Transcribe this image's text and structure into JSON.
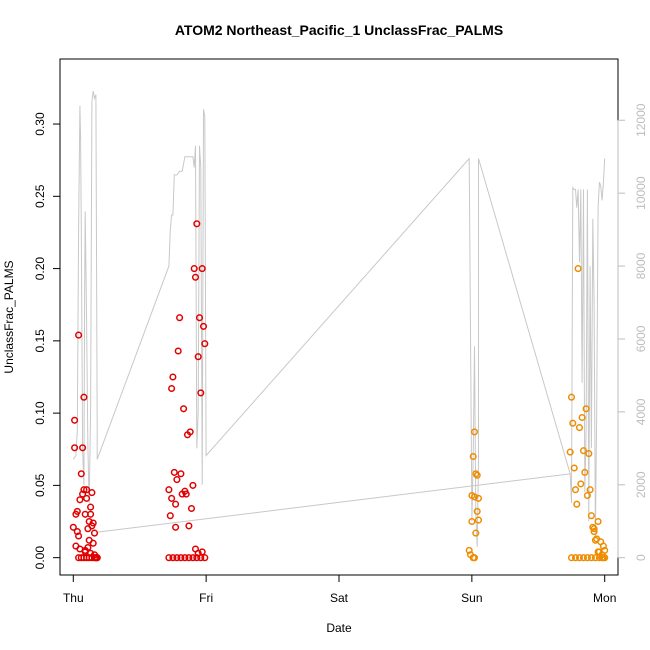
{
  "chart_data": {
    "type": "scatter",
    "title": "ATOM2 Northeast_Pacific_1 UnclassFrac_PALMS",
    "xlabel": "Date",
    "ylabel": "UnclassFrac_PALMS",
    "x_ticks": [
      "Thu",
      "Fri",
      "Sat",
      "Sun",
      "Mon"
    ],
    "xlim_days": [
      -0.1,
      4.1
    ],
    "ylim": [
      -0.012,
      0.345
    ],
    "y_ticks": [
      "0.00",
      "0.05",
      "0.10",
      "0.15",
      "0.20",
      "0.25",
      "0.30"
    ],
    "y2_ticks": [
      "0",
      "2000",
      "4000",
      "6000",
      "8000",
      "10000",
      "12000"
    ],
    "y2lim": [
      -475,
      13680
    ],
    "grid": false,
    "series": [
      {
        "color": "#e00000",
        "x": [
          0.0,
          0.01,
          0.01,
          0.02,
          0.02,
          0.03,
          0.03,
          0.04,
          0.04,
          0.05,
          0.06,
          0.07,
          0.07,
          0.08,
          0.08,
          0.09,
          0.09,
          0.1,
          0.1,
          0.11,
          0.11,
          0.12,
          0.12,
          0.13,
          0.13,
          0.14,
          0.14,
          0.15,
          0.15,
          0.16,
          0.16,
          0.17,
          0.17,
          0.18,
          0.18,
          0.04,
          0.06,
          0.08,
          0.1,
          0.12,
          0.14,
          0.16,
          0.05,
          0.09,
          0.13,
          0.17
        ],
        "y": [
          0.021,
          0.095,
          0.076,
          0.008,
          0.03,
          0.032,
          0.018,
          0.015,
          0.154,
          0.04,
          0.058,
          0.076,
          0.044,
          0.047,
          0.111,
          0.005,
          0.03,
          0.041,
          0.047,
          0.007,
          0.02,
          0.025,
          0.012,
          0.03,
          0.035,
          0.045,
          0.022,
          0.024,
          0.01,
          0.002,
          0.017,
          0.0,
          0.0,
          0.0,
          0.0,
          0.0,
          0.0,
          0.0,
          0.0,
          0.0,
          0.0,
          0.0,
          0.006,
          0.004,
          0.003,
          0.0
        ]
      },
      {
        "color": "#e00000",
        "x": [
          0.72,
          0.73,
          0.74,
          0.74,
          0.75,
          0.76,
          0.77,
          0.77,
          0.78,
          0.79,
          0.8,
          0.81,
          0.82,
          0.83,
          0.84,
          0.85,
          0.86,
          0.87,
          0.88,
          0.89,
          0.9,
          0.91,
          0.92,
          0.93,
          0.94,
          0.95,
          0.96,
          0.97,
          0.98,
          0.99,
          0.72,
          0.75,
          0.78,
          0.81,
          0.84,
          0.87,
          0.9,
          0.93,
          0.96,
          0.99,
          0.92,
          0.94,
          0.97
        ],
        "y": [
          0.047,
          0.029,
          0.117,
          0.041,
          0.125,
          0.059,
          0.021,
          0.037,
          0.054,
          0.143,
          0.166,
          0.058,
          0.044,
          0.103,
          0.046,
          0.044,
          0.085,
          0.022,
          0.087,
          0.034,
          0.05,
          0.2,
          0.194,
          0.231,
          0.139,
          0.166,
          0.114,
          0.2,
          0.16,
          0.148,
          0.0,
          0.0,
          0.0,
          0.0,
          0.0,
          0.0,
          0.0,
          0.0,
          0.0,
          0.0,
          0.006,
          0.003,
          0.004
        ]
      },
      {
        "color": "#ee8c00",
        "x": [
          2.98,
          2.99,
          3.0,
          3.0,
          3.01,
          3.02,
          3.02,
          3.03,
          3.04,
          3.04,
          3.05,
          3.05,
          3.03,
          3.01,
          3.02
        ],
        "y": [
          0.005,
          0.002,
          0.043,
          0.025,
          0.07,
          0.087,
          0.042,
          0.058,
          0.032,
          0.057,
          0.026,
          0.041,
          0.017,
          0.0,
          0.0
        ]
      },
      {
        "color": "#ee8c00",
        "x": [
          3.74,
          3.75,
          3.76,
          3.77,
          3.78,
          3.79,
          3.8,
          3.81,
          3.82,
          3.83,
          3.84,
          3.85,
          3.86,
          3.87,
          3.88,
          3.89,
          3.9,
          3.91,
          3.92,
          3.93,
          3.94,
          3.95,
          3.96,
          3.97,
          3.98,
          3.99,
          4.0,
          3.75,
          3.78,
          3.81,
          3.84,
          3.87,
          3.9,
          3.93,
          3.96,
          3.99,
          4.0,
          3.98,
          3.95,
          3.92
        ],
        "y": [
          0.073,
          0.111,
          0.093,
          0.062,
          0.047,
          0.037,
          0.2,
          0.09,
          0.051,
          0.097,
          0.074,
          0.059,
          0.103,
          0.043,
          0.072,
          0.047,
          0.029,
          0.021,
          0.018,
          0.012,
          0.013,
          0.025,
          0.004,
          0.011,
          0.002,
          0.008,
          0.005,
          0.0,
          0.0,
          0.0,
          0.0,
          0.0,
          0.0,
          0.0,
          0.0,
          0.0,
          0.0,
          0.0,
          0.004,
          0.02
        ]
      }
    ],
    "altitude_line": {
      "color": "#c8c8c8",
      "x": [
        0.0,
        0.02,
        0.03,
        0.04,
        0.05,
        0.055,
        0.06,
        0.07,
        0.08,
        0.085,
        0.09,
        0.1,
        0.11,
        0.12,
        0.13,
        0.14,
        0.15,
        0.16,
        0.17,
        0.18,
        0.18,
        0.72,
        0.73,
        0.74,
        0.75,
        0.76,
        0.78,
        0.8,
        0.82,
        0.84,
        0.86,
        0.88,
        0.9,
        0.91,
        0.92,
        0.93,
        0.935,
        0.94,
        0.95,
        0.96,
        0.97,
        0.98,
        0.99,
        1.0,
        2.98,
        3.0,
        3.01,
        3.02,
        3.03,
        3.04,
        3.05,
        3.05,
        3.74,
        3.75,
        3.76,
        3.77,
        3.78,
        3.79,
        3.8,
        3.81,
        3.82,
        3.83,
        3.84,
        3.85,
        3.86,
        3.87,
        3.88,
        3.89,
        3.9,
        3.91,
        3.92,
        3.93,
        3.94,
        3.95,
        3.96,
        3.97,
        3.98,
        3.99,
        4.0
      ],
      "y": [
        2700,
        2800,
        3500,
        9000,
        12400,
        11500,
        9000,
        3000,
        2000,
        7000,
        9500,
        6500,
        3000,
        1500,
        4000,
        12500,
        12800,
        12600,
        12700,
        3500,
        2700,
        8000,
        9000,
        9400,
        9400,
        10500,
        10500,
        10600,
        10600,
        11000,
        11000,
        11000,
        11000,
        10700,
        11300,
        3000,
        3500,
        4000,
        11300,
        10700,
        2000,
        12300,
        12100,
        2800,
        10950,
        1000,
        2800,
        5800,
        1200,
        300,
        2600,
        10950,
        2300,
        1500,
        10150,
        10100,
        10100,
        9600,
        10100,
        8100,
        10100,
        4800,
        10100,
        1800,
        3500,
        10100,
        1000,
        8000,
        3000,
        9300,
        7000,
        600,
        4000,
        9600,
        10300,
        10200,
        9800,
        10300,
        10950
      ]
    },
    "trend_line": {
      "color": "#c8c8c8",
      "x": [
        0.18,
        3.74
      ],
      "y": [
        700,
        2300
      ]
    }
  }
}
